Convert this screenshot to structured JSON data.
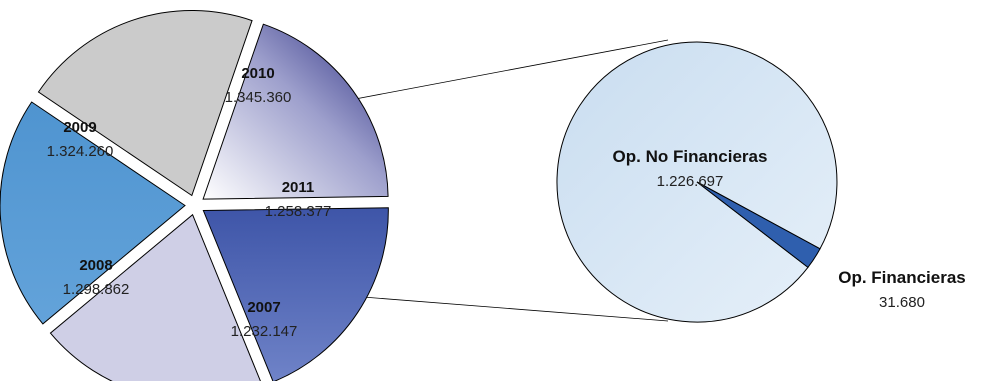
{
  "chart_data": [
    {
      "type": "pie",
      "exploded": true,
      "slices": [
        {
          "label": "2007",
          "value": 1232147,
          "display": "1.232.147",
          "color": "#4f66b4"
        },
        {
          "label": "2008",
          "value": 1298862,
          "display": "1.298.862",
          "color": "#cfcfe6"
        },
        {
          "label": "2009",
          "value": 1324260,
          "display": "1.324.260",
          "color": "#5b9bd5"
        },
        {
          "label": "2010",
          "value": 1345360,
          "display": "1.345.360",
          "color": "#cbcbcb"
        },
        {
          "label": "2011",
          "value": 1258377,
          "display": "1.258.377",
          "color": "#8486b8"
        }
      ]
    },
    {
      "type": "pie",
      "breakdown_of": "2011",
      "slices": [
        {
          "label": "Op. No Financieras",
          "value": 1226697,
          "display": "1.226.697",
          "color": "#d6e6f4"
        },
        {
          "label": "Op. Financieras",
          "value": 31680,
          "display": "31.680",
          "color": "#2f5fae"
        }
      ]
    }
  ]
}
